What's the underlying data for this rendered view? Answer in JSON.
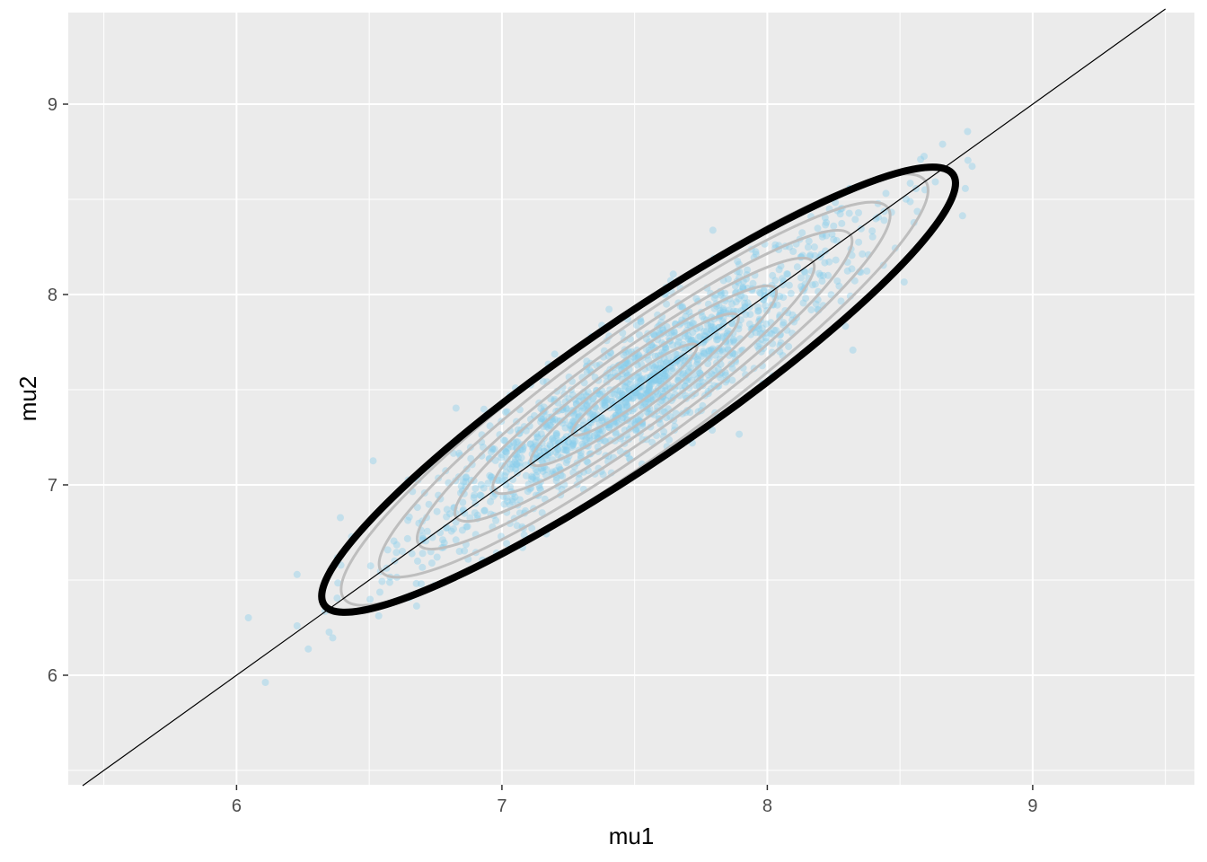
{
  "chart_data": {
    "type": "scatter",
    "title": "",
    "xlabel": "mu1",
    "ylabel": "mu2",
    "xlim": [
      5.4,
      9.6
    ],
    "ylim": [
      5.42,
      9.5
    ],
    "x_ticks": [
      6,
      7,
      8,
      9
    ],
    "y_ticks": [
      6,
      7,
      8,
      9
    ],
    "x_tick_labels": [
      "6",
      "7",
      "8",
      "9"
    ],
    "y_tick_labels": [
      "6",
      "7",
      "8",
      "9"
    ],
    "grid": true,
    "legend": "none",
    "colors": {
      "panel": "#ebebeb",
      "grid": "#ffffff",
      "points": "#87ceeb",
      "inner_contours": "#bebebe",
      "outer_contour": "#000000",
      "reference_line": "#000000"
    },
    "point_cloud": {
      "n": 1500,
      "mean": [
        7.5,
        7.5
      ],
      "sd": [
        0.42,
        0.42
      ],
      "correlation": 0.92,
      "opacity": 0.4
    },
    "reference_line": {
      "slope": 1,
      "intercept": 0
    },
    "outer_contour": {
      "center": [
        7.5,
        7.5
      ],
      "major_axis_endpoints": [
        [
          6.33,
          6.37
        ],
        [
          8.7,
          8.63
        ]
      ],
      "minor_semi_axis": 0.2
    },
    "inner_contours": [
      {
        "minor_semi_axis": 0.2,
        "major_semi_axis": 1.55
      },
      {
        "minor_semi_axis": 0.17,
        "major_semi_axis": 1.35
      },
      {
        "minor_semi_axis": 0.14,
        "major_semi_axis": 1.15
      },
      {
        "minor_semi_axis": 0.115,
        "major_semi_axis": 0.95
      },
      {
        "minor_semi_axis": 0.09,
        "major_semi_axis": 0.75
      },
      {
        "minor_semi_axis": 0.065,
        "major_semi_axis": 0.55
      },
      {
        "minor_semi_axis": 0.04,
        "major_semi_axis": 0.33
      }
    ]
  }
}
